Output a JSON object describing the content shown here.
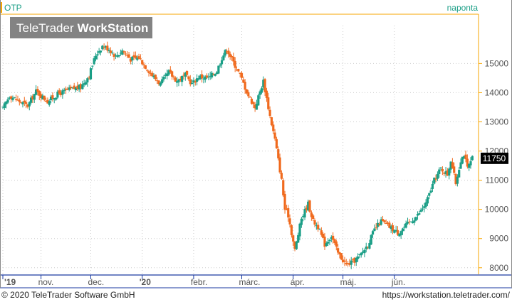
{
  "header": {
    "symbol": "OTP",
    "period": "naponta"
  },
  "watermark": {
    "brand_regular": "TeleTrader",
    "brand_bold": "WorkStation"
  },
  "footer": {
    "copyright": "© 2020 TeleTrader Software GmbH",
    "url": "https://workstation.teletrader.com/"
  },
  "colors": {
    "up": "#1a9e86",
    "down": "#f06a1e",
    "accent": "#f7a600",
    "grid": "#cccccc",
    "axis": "#1b3aa0"
  },
  "chart_data": {
    "type": "candlestick",
    "y_ticks": [
      "8000",
      "9000",
      "10000",
      "11000",
      "12000",
      "13000",
      "14000",
      "15000"
    ],
    "ylim": [
      7800,
      16300
    ],
    "grid": true,
    "last_price": "11750",
    "x_labels": [
      {
        "label": "'19",
        "day": 0
      },
      {
        "label": "nov.",
        "day": 23
      },
      {
        "label": "dec.",
        "day": 53
      },
      {
        "label": "'20",
        "day": 84
      },
      {
        "label": "febr.",
        "day": 115
      },
      {
        "label": "márc.",
        "day": 144
      },
      {
        "label": "ápr.",
        "day": 175
      },
      {
        "label": "máj.",
        "day": 205
      },
      {
        "label": "jún.",
        "day": 236
      }
    ],
    "path": [
      [
        0,
        13450
      ],
      [
        4,
        13900
      ],
      [
        10,
        13700
      ],
      [
        15,
        13550
      ],
      [
        20,
        14050
      ],
      [
        27,
        13700
      ],
      [
        33,
        13950
      ],
      [
        40,
        14100
      ],
      [
        47,
        14200
      ],
      [
        52,
        14600
      ],
      [
        56,
        15300
      ],
      [
        60,
        15600
      ],
      [
        64,
        15500
      ],
      [
        68,
        15250
      ],
      [
        72,
        15450
      ],
      [
        77,
        15150
      ],
      [
        82,
        15200
      ],
      [
        86,
        14900
      ],
      [
        90,
        14600
      ],
      [
        95,
        14300
      ],
      [
        100,
        14700
      ],
      [
        105,
        14400
      ],
      [
        110,
        14600
      ],
      [
        114,
        14300
      ],
      [
        118,
        14550
      ],
      [
        124,
        14500
      ],
      [
        129,
        14750
      ],
      [
        132,
        15200
      ],
      [
        135,
        15500
      ],
      [
        138,
        15150
      ],
      [
        143,
        14600
      ],
      [
        148,
        13900
      ],
      [
        152,
        13500
      ],
      [
        157,
        14400
      ],
      [
        161,
        13200
      ],
      [
        164,
        12400
      ],
      [
        166,
        11700
      ],
      [
        168,
        11000
      ],
      [
        170,
        10000
      ],
      [
        172,
        9800
      ],
      [
        176,
        8600
      ],
      [
        180,
        9700
      ],
      [
        184,
        10200
      ],
      [
        187,
        9600
      ],
      [
        190,
        9400
      ],
      [
        194,
        8800
      ],
      [
        198,
        9100
      ],
      [
        202,
        8500
      ],
      [
        207,
        8100
      ],
      [
        211,
        8200
      ],
      [
        215,
        8400
      ],
      [
        220,
        8800
      ],
      [
        224,
        9300
      ],
      [
        228,
        9600
      ],
      [
        233,
        9400
      ],
      [
        238,
        9200
      ],
      [
        244,
        9500
      ],
      [
        250,
        9800
      ],
      [
        255,
        10200
      ],
      [
        260,
        11000
      ],
      [
        264,
        11400
      ],
      [
        268,
        11200
      ],
      [
        270,
        11700
      ],
      [
        273,
        10900
      ],
      [
        276,
        11700
      ],
      [
        278,
        11900
      ],
      [
        280,
        11400
      ],
      [
        283,
        11750
      ]
    ]
  }
}
